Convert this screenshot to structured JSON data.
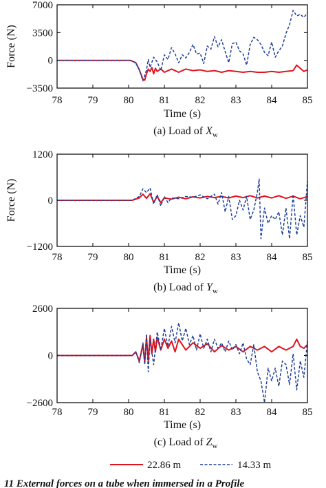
{
  "chart_data": [
    {
      "type": "line",
      "caption": "(a) Load of",
      "caption_var": "X",
      "caption_sub": "w",
      "xlabel": "Time (s)",
      "ylabel": "Force (N)",
      "xlim": [
        78,
        85
      ],
      "ylim": [
        -3500,
        7000
      ],
      "xticks": [
        "78",
        "79",
        "80",
        "81",
        "82",
        "83",
        "84",
        "85"
      ],
      "yticks": [
        "7000",
        "3500",
        "0",
        "−3500"
      ],
      "ytick_values": [
        7000,
        3500,
        0,
        -3500
      ],
      "series": [
        {
          "name": "22.86 m",
          "color": "#e0141e",
          "style": "solid",
          "x": [
            78,
            80.05,
            80.2,
            80.3,
            80.4,
            80.45,
            80.5,
            80.55,
            80.6,
            80.65,
            80.7,
            80.75,
            80.8,
            80.9,
            81.0,
            81.2,
            81.4,
            81.6,
            81.8,
            82.0,
            82.2,
            82.4,
            82.6,
            82.8,
            83.0,
            83.2,
            83.4,
            83.6,
            83.8,
            84.0,
            84.2,
            84.4,
            84.6,
            84.7,
            84.8,
            84.9,
            85.0
          ],
          "y": [
            0,
            0,
            -300,
            -1200,
            -2400,
            -2500,
            -1700,
            -1100,
            -1400,
            -900,
            -1700,
            -1000,
            -1400,
            -1100,
            -1500,
            -1100,
            -1500,
            -1100,
            -1300,
            -1200,
            -1400,
            -1300,
            -1500,
            -1300,
            -1400,
            -1500,
            -1400,
            -1500,
            -1500,
            -1400,
            -1500,
            -1400,
            -1300,
            -600,
            -1000,
            -1400,
            -1200
          ]
        },
        {
          "name": "14.33 m",
          "color": "#1f3f9a",
          "style": "dashed",
          "x": [
            78,
            80.05,
            80.2,
            80.3,
            80.4,
            80.5,
            80.55,
            80.6,
            80.7,
            80.8,
            80.9,
            81.0,
            81.1,
            81.2,
            81.3,
            81.4,
            81.5,
            81.6,
            81.7,
            81.8,
            81.9,
            82.0,
            82.1,
            82.2,
            82.3,
            82.4,
            82.5,
            82.6,
            82.7,
            82.8,
            82.9,
            83.0,
            83.1,
            83.2,
            83.3,
            83.4,
            83.5,
            83.6,
            83.7,
            83.8,
            83.9,
            84.0,
            84.1,
            84.2,
            84.3,
            84.4,
            84.5,
            84.6,
            84.7,
            84.8,
            84.9,
            85.0
          ],
          "y": [
            0,
            0,
            -300,
            -1200,
            -2600,
            -1200,
            100,
            -900,
            400,
            -200,
            -1300,
            700,
            100,
            1600,
            800,
            -300,
            700,
            300,
            1000,
            2000,
            800,
            900,
            -400,
            1800,
            1400,
            3000,
            1700,
            2600,
            1100,
            -300,
            2100,
            2300,
            1200,
            800,
            -600,
            2000,
            2900,
            2600,
            2000,
            1000,
            600,
            2300,
            400,
            1200,
            1800,
            3400,
            4500,
            6300,
            5600,
            5800,
            5400,
            6000
          ]
        }
      ]
    },
    {
      "type": "line",
      "caption": "(b) Load of",
      "caption_var": "Y",
      "caption_sub": "w",
      "xlabel": "Time (s)",
      "ylabel": "Force (N)",
      "xlim": [
        78,
        85
      ],
      "ylim": [
        -1200,
        1200
      ],
      "xticks": [
        "78",
        "79",
        "80",
        "81",
        "82",
        "83",
        "84",
        "85"
      ],
      "yticks": [
        "1200",
        "0",
        "−1200"
      ],
      "ytick_values": [
        1200,
        0,
        -1200
      ],
      "series": [
        {
          "name": "22.86 m",
          "color": "#e0141e",
          "style": "solid",
          "x": [
            78,
            80.1,
            80.3,
            80.4,
            80.5,
            80.6,
            80.7,
            80.8,
            80.9,
            81.0,
            81.2,
            81.4,
            81.6,
            81.8,
            82.0,
            82.2,
            82.4,
            82.6,
            82.8,
            83.0,
            83.2,
            83.4,
            83.6,
            83.8,
            84.0,
            84.2,
            84.4,
            84.6,
            84.8,
            85.0
          ],
          "y": [
            0,
            0,
            60,
            160,
            50,
            170,
            -50,
            100,
            -60,
            60,
            30,
            80,
            40,
            90,
            60,
            100,
            70,
            100,
            60,
            110,
            70,
            120,
            60,
            110,
            60,
            120,
            50,
            110,
            40,
            100
          ]
        },
        {
          "name": "14.33 m",
          "color": "#1f3f9a",
          "style": "dashed",
          "x": [
            78,
            80.1,
            80.3,
            80.4,
            80.5,
            80.6,
            80.7,
            80.8,
            80.9,
            81.0,
            81.1,
            81.2,
            81.4,
            81.6,
            81.8,
            82.0,
            82.2,
            82.4,
            82.5,
            82.6,
            82.7,
            82.8,
            82.9,
            83.0,
            83.1,
            83.2,
            83.3,
            83.4,
            83.5,
            83.6,
            83.65,
            83.7,
            83.8,
            83.9,
            84.0,
            84.1,
            84.2,
            84.3,
            84.4,
            84.5,
            84.6,
            84.7,
            84.8,
            84.9,
            85.0
          ],
          "y": [
            0,
            0,
            100,
            300,
            200,
            320,
            -100,
            150,
            -150,
            100,
            -60,
            60,
            40,
            100,
            80,
            140,
            40,
            160,
            -100,
            200,
            -300,
            100,
            -500,
            -400,
            0,
            -250,
            100,
            -500,
            -250,
            200,
            550,
            -1000,
            -200,
            -600,
            -400,
            -500,
            -300,
            -900,
            -200,
            -1000,
            150,
            -900,
            -400,
            -700,
            500
          ]
        }
      ]
    },
    {
      "type": "line",
      "caption": "(c) Load of",
      "caption_var": "Z",
      "caption_sub": "w",
      "xlabel": "Time (s)",
      "ylabel": "",
      "xlim": [
        78,
        85
      ],
      "ylim": [
        -2600,
        2600
      ],
      "xticks": [
        "78",
        "79",
        "80",
        "81",
        "82",
        "83",
        "84",
        "85"
      ],
      "yticks": [
        "2600",
        "0",
        "−2600"
      ],
      "ytick_values": [
        2600,
        0,
        -2600
      ],
      "series": [
        {
          "name": "22.86 m",
          "color": "#e0141e",
          "style": "solid",
          "x": [
            78,
            80.1,
            80.2,
            80.3,
            80.4,
            80.45,
            80.5,
            80.55,
            80.6,
            80.65,
            80.7,
            80.75,
            80.8,
            80.9,
            81.0,
            81.1,
            81.2,
            81.3,
            81.4,
            81.6,
            81.8,
            82.0,
            82.2,
            82.4,
            82.6,
            82.8,
            83.0,
            83.2,
            83.4,
            83.6,
            83.8,
            84.0,
            84.2,
            84.4,
            84.6,
            84.7,
            84.8,
            84.9,
            85.0
          ],
          "y": [
            0,
            0,
            200,
            -300,
            600,
            -400,
            1000,
            -300,
            1100,
            100,
            900,
            200,
            1000,
            300,
            900,
            400,
            800,
            200,
            900,
            300,
            700,
            400,
            650,
            200,
            550,
            300,
            500,
            200,
            500,
            300,
            500,
            200,
            500,
            300,
            500,
            900,
            500,
            400,
            600
          ]
        },
        {
          "name": "14.33 m",
          "color": "#1f3f9a",
          "style": "dashed",
          "x": [
            78,
            80.1,
            80.2,
            80.3,
            80.4,
            80.45,
            80.5,
            80.55,
            80.6,
            80.7,
            80.8,
            80.9,
            81.0,
            81.1,
            81.2,
            81.3,
            81.4,
            81.5,
            81.6,
            81.7,
            81.8,
            81.9,
            82.0,
            82.1,
            82.2,
            82.3,
            82.4,
            82.5,
            82.6,
            82.7,
            82.8,
            82.9,
            83.0,
            83.1,
            83.2,
            83.3,
            83.4,
            83.5,
            83.6,
            83.7,
            83.8,
            83.9,
            84.0,
            84.1,
            84.2,
            84.3,
            84.4,
            84.5,
            84.6,
            84.7,
            84.8,
            84.9,
            85.0
          ],
          "y": [
            0,
            0,
            200,
            -400,
            700,
            -500,
            1200,
            -900,
            900,
            -500,
            1300,
            300,
            1500,
            500,
            1600,
            700,
            1800,
            800,
            1500,
            600,
            1100,
            300,
            1200,
            400,
            900,
            200,
            900,
            400,
            700,
            200,
            800,
            300,
            600,
            100,
            700,
            -200,
            -500,
            600,
            -900,
            -1400,
            -2600,
            -700,
            -1400,
            -700,
            -1700,
            -300,
            -500,
            -1600,
            100,
            -1900,
            -300,
            -1200,
            800
          ]
        }
      ]
    }
  ],
  "legend": {
    "items": [
      {
        "label": "22.86 m",
        "color": "#e0141e",
        "style": "solid"
      },
      {
        "label": "14.33 m",
        "color": "#1f3f9a",
        "style": "dashed"
      }
    ],
    "placement": "bottom-center"
  },
  "footer_partial": "11    External forces on a tube when immersed in a Profile"
}
